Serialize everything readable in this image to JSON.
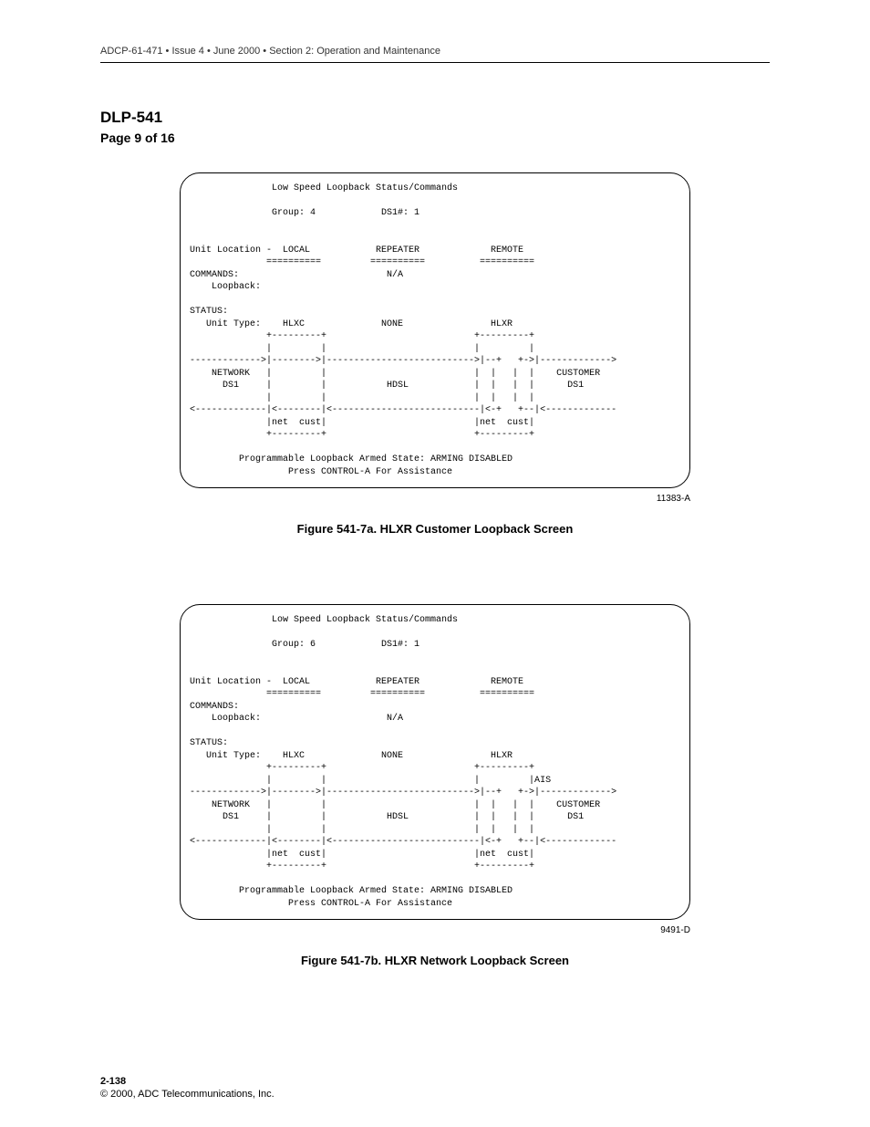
{
  "header": {
    "line": "ADCP-61-471 • Issue 4 • June 2000 • Section 2: Operation and Maintenance"
  },
  "title": {
    "dlp": "DLP-541",
    "page": "Page 9 of 16"
  },
  "figure_a": {
    "screen": "               Low Speed Loopback Status/Commands\n\n               Group: 4            DS1#: 1\n\n\nUnit Location -  LOCAL            REPEATER             REMOTE\n              ==========         ==========          ==========\nCOMMANDS:                           N/A\n    Loopback:\n\nSTATUS:\n   Unit Type:    HLXC              NONE                HLXR\n              +---------+                           +---------+\n              |         |                           |         |\n------------->|-------->|--------------------------->|--+   +->|------------->\n    NETWORK   |         |                           |  |   |  |    CUSTOMER\n      DS1     |         |           HDSL            |  |   |  |      DS1\n              |         |                           |  |   |  |\n<-------------|<--------|<---------------------------|<-+   +--|<-------------\n              |net  cust|                           |net  cust|\n              +---------+                           +---------+\n\n         Programmable Loopback Armed State: ARMING DISABLED\n                  Press CONTROL-A For Assistance",
    "id": "11383-A",
    "caption": "Figure 541-7a. HLXR Customer Loopback Screen"
  },
  "figure_b": {
    "screen": "               Low Speed Loopback Status/Commands\n\n               Group: 6            DS1#: 1\n\n\nUnit Location -  LOCAL            REPEATER             REMOTE\n              ==========         ==========          ==========\nCOMMANDS:\n    Loopback:                       N/A\n\nSTATUS:\n   Unit Type:    HLXC              NONE                HLXR\n              +---------+                           +---------+\n              |         |                           |         |AIS\n------------->|-------->|--------------------------->|--+   +->|------------->\n    NETWORK   |         |                           |  |   |  |    CUSTOMER\n      DS1     |         |           HDSL            |  |   |  |      DS1\n              |         |                           |  |   |  |\n<-------------|<--------|<---------------------------|<-+   +--|<-------------\n              |net  cust|                           |net  cust|\n              +---------+                           +---------+\n\n         Programmable Loopback Armed State: ARMING DISABLED\n                  Press CONTROL-A For Assistance",
    "id": "9491-D",
    "caption": "Figure 541-7b. HLXR Network Loopback Screen"
  },
  "footer": {
    "page": "2-138",
    "copyright": "© 2000, ADC Telecommunications, Inc."
  }
}
